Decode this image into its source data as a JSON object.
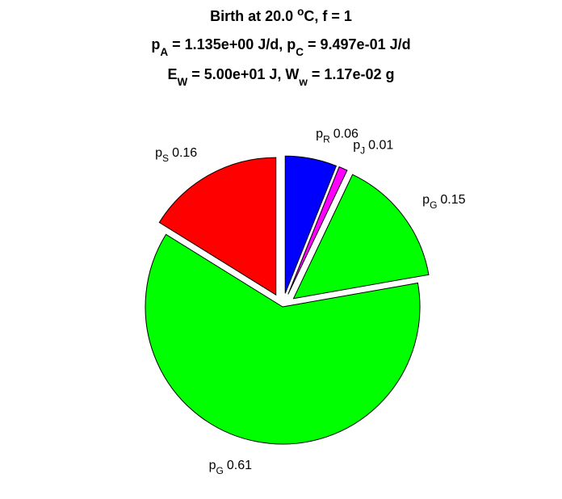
{
  "chart_data": {
    "type": "pie",
    "title": [
      [
        {
          "text": "Birth at 20.0 "
        },
        {
          "text": "o",
          "style": "super"
        },
        {
          "text": "C, f = 1"
        }
      ],
      [
        {
          "text": "p"
        },
        {
          "text": "A",
          "style": "sub"
        },
        {
          "text": " = 1.135e+00 J/d, p"
        },
        {
          "text": "C",
          "style": "sub"
        },
        {
          "text": " = 9.497e-01 J/d"
        }
      ],
      [
        {
          "text": "E"
        },
        {
          "text": "W",
          "style": "sub"
        },
        {
          "text": " = 5.00e+01 J, W"
        },
        {
          "text": "w",
          "style": "sub"
        },
        {
          "text": " = 1.17e-02 g"
        }
      ]
    ],
    "categories": [
      [
        {
          "text": "p"
        },
        {
          "text": "R",
          "style": "sub"
        }
      ],
      [
        {
          "text": "p"
        },
        {
          "text": "J",
          "style": "sub"
        }
      ],
      [
        {
          "text": "p"
        },
        {
          "text": "G",
          "style": "sub"
        }
      ],
      [
        {
          "text": "p"
        },
        {
          "text": "G",
          "style": "sub"
        }
      ],
      [
        {
          "text": "p"
        },
        {
          "text": "S",
          "style": "sub"
        }
      ]
    ],
    "values": [
      0.06,
      0.01,
      0.15,
      0.61,
      0.16
    ],
    "colors": [
      "#0000ff",
      "#ff00ff",
      "#00ff00",
      "#00ff00",
      "#ff0000"
    ],
    "explode": [
      true,
      true,
      true,
      false,
      true
    ]
  }
}
